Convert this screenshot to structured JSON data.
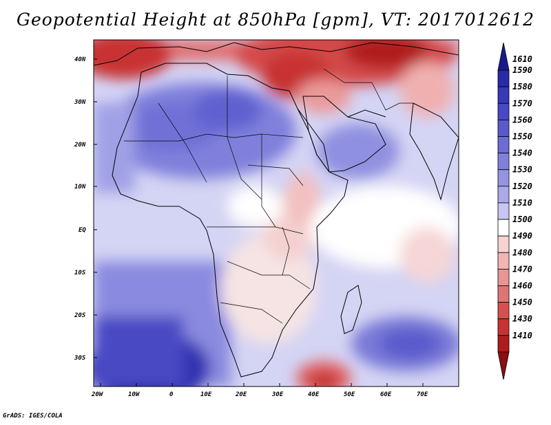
{
  "title": "Geopotential Height at 850hPa [gpm], VT: 2017012612",
  "footer": "GrADS: IGES/COLA",
  "map": {
    "region": "Africa and Middle East",
    "lat_ticks": [
      "40N",
      "30N",
      "20N",
      "10N",
      "EQ",
      "10S",
      "20S",
      "30S"
    ],
    "lon_ticks": [
      "20W",
      "10W",
      "0",
      "10E",
      "20E",
      "30E",
      "40E",
      "50E",
      "60E",
      "70E"
    ]
  },
  "colorbar": {
    "labels": [
      "1610",
      "1590",
      "1580",
      "1570",
      "1560",
      "1550",
      "1540",
      "1530",
      "1520",
      "1510",
      "1500",
      "1490",
      "1480",
      "1470",
      "1460",
      "1450",
      "1430",
      "1410"
    ],
    "colors": [
      "#1a1a8c",
      "#2a2aa8",
      "#3838b8",
      "#4848c4",
      "#5a5acc",
      "#6c6cd4",
      "#8080dc",
      "#9494e2",
      "#aaaae8",
      "#c6c6f0",
      "#ffffff",
      "#f8d2d2",
      "#f2b4b4",
      "#ea9494",
      "#e07474",
      "#d65050",
      "#c83232",
      "#b01c1c",
      "#8c0e0e"
    ]
  }
}
